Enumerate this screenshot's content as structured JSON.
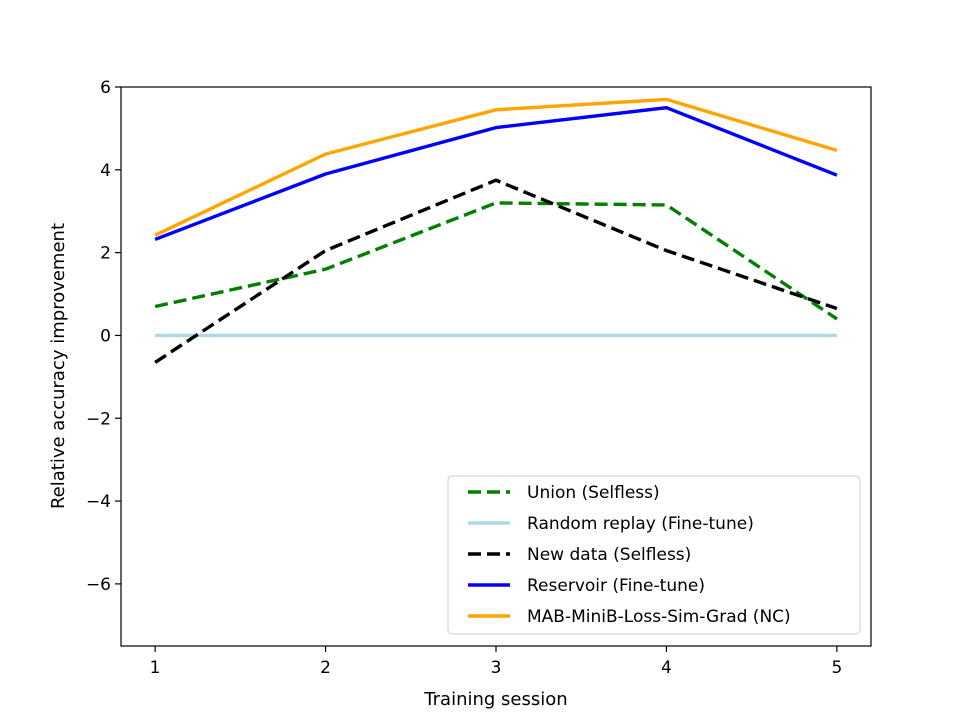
{
  "chart_data": {
    "type": "line",
    "title": "",
    "xlabel": "Training session",
    "ylabel": "Relative accuracy improvement",
    "x": [
      1,
      2,
      3,
      4,
      5
    ],
    "xlim": [
      0.8,
      5.2
    ],
    "ylim": [
      -7.5,
      6.0
    ],
    "xticks": [
      1,
      2,
      3,
      4,
      5
    ],
    "xtick_labels": [
      "1",
      "2",
      "3",
      "4",
      "5"
    ],
    "yticks": [
      -6,
      -4,
      -2,
      0,
      2,
      4,
      6
    ],
    "ytick_labels": [
      "−6",
      "−4",
      "−2",
      "0",
      "2",
      "4",
      "6"
    ],
    "grid": false,
    "legend_position": "bottom-right",
    "series": [
      {
        "name": "Union (Selfless)",
        "color": "#008000",
        "dashed": true,
        "values": [
          0.7,
          1.6,
          3.2,
          3.15,
          0.4
        ]
      },
      {
        "name": "Random replay (Fine-tune)",
        "color": "#add8e6",
        "dashed": false,
        "values": [
          0.0,
          0.0,
          0.0,
          0.0,
          0.0
        ]
      },
      {
        "name": "New data (Selfless)",
        "color": "#000000",
        "dashed": true,
        "values": [
          -0.65,
          2.05,
          3.75,
          2.05,
          0.65
        ]
      },
      {
        "name": "Reservoir (Fine-tune)",
        "color": "#0000ff",
        "dashed": false,
        "values": [
          2.32,
          3.9,
          5.02,
          5.5,
          3.87
        ]
      },
      {
        "name": "MAB-MiniB-Loss-Sim-Grad (NC)",
        "color": "#ffa500",
        "dashed": false,
        "values": [
          2.42,
          4.38,
          5.45,
          5.7,
          4.47
        ]
      }
    ]
  }
}
